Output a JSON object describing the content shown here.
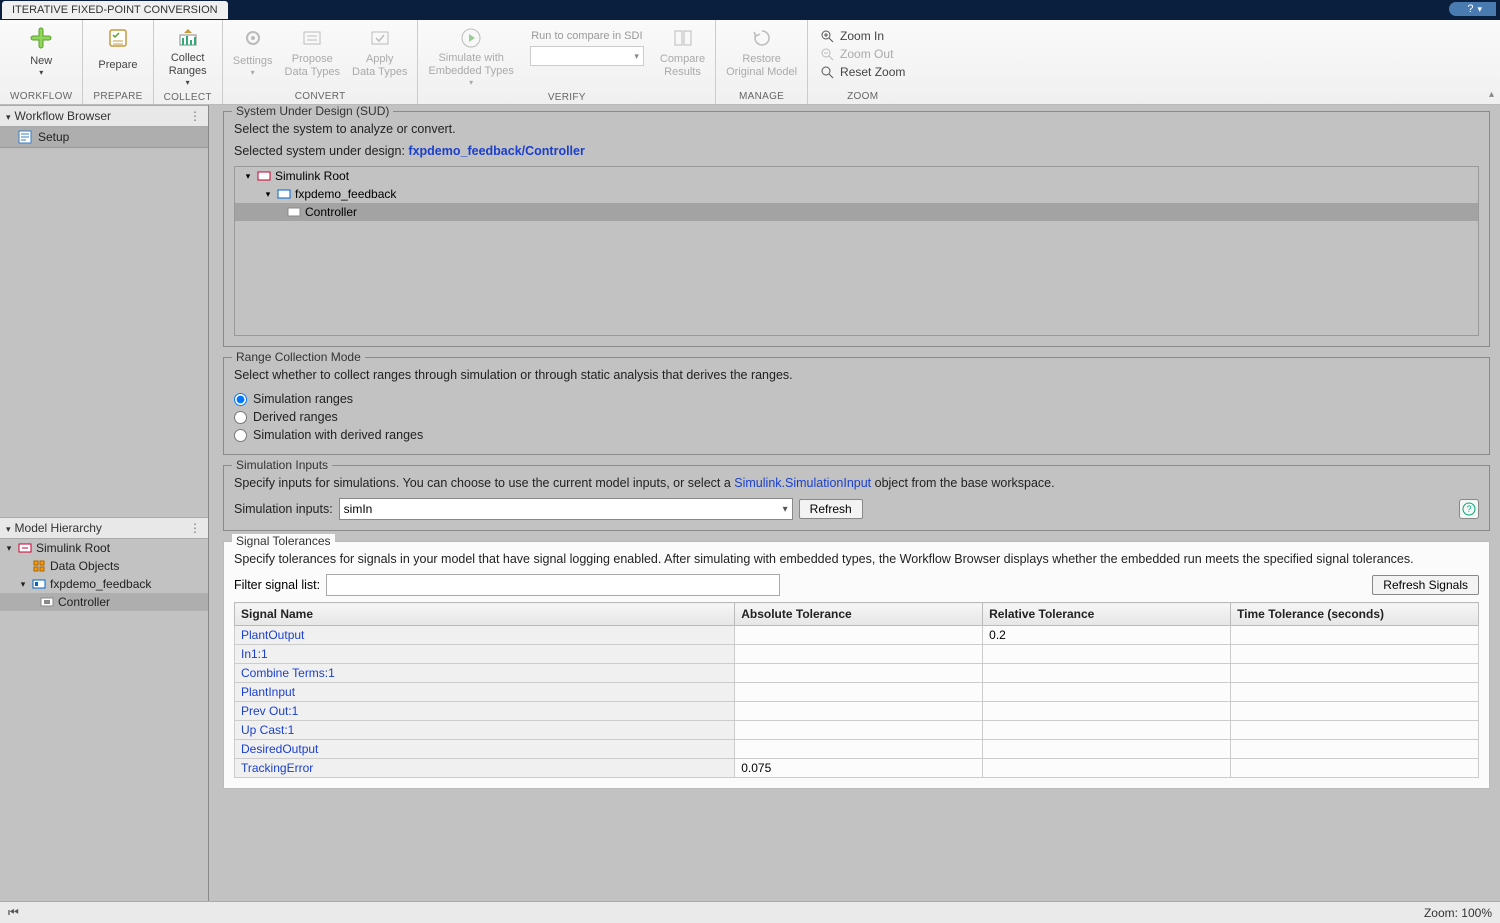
{
  "title_tab": "ITERATIVE FIXED-POINT CONVERSION",
  "help_badge": "?",
  "ribbon": {
    "new": "New",
    "prepare": "Prepare",
    "collect": "Collect\nRanges",
    "settings": "Settings",
    "propose": "Propose\nData Types",
    "apply": "Apply\nData Types",
    "simulate": "Simulate with\nEmbedded Types",
    "sdi_label": "Run to compare in SDI",
    "compare": "Compare\nResults",
    "restore": "Restore\nOriginal Model",
    "zoom_in": "Zoom In",
    "zoom_out": "Zoom Out",
    "reset_zoom": "Reset Zoom",
    "groups": {
      "workflow": "WORKFLOW",
      "prepare": "PREPARE",
      "collect": "COLLECT",
      "convert": "CONVERT",
      "verify": "VERIFY",
      "manage": "MANAGE",
      "zoom": "ZOOM"
    }
  },
  "panels": {
    "workflow_browser": "Workflow Browser",
    "setup": "Setup",
    "model_hierarchy": "Model Hierarchy",
    "simulink_root": "Simulink Root",
    "data_objects": "Data Objects",
    "fxpdemo_feedback": "fxpdemo_feedback",
    "controller": "Controller"
  },
  "sud": {
    "legend": "System Under Design (SUD)",
    "desc": "Select the system to analyze or convert.",
    "selected_label": "Selected system under design:",
    "selected_link": "fxpdemo_feedback/Controller",
    "tree": {
      "root": "Simulink Root",
      "model": "fxpdemo_feedback",
      "controller": "Controller"
    }
  },
  "range_mode": {
    "legend": "Range Collection Mode",
    "desc": "Select whether to collect ranges through simulation or through static analysis that derives the ranges.",
    "opt1": "Simulation ranges",
    "opt2": "Derived ranges",
    "opt3": "Simulation with derived ranges"
  },
  "sim_inputs": {
    "legend": "Simulation Inputs",
    "desc_pre": "Specify inputs for simulations. You can choose to use the current model inputs, or select a ",
    "desc_link": "Simulink.SimulationInput",
    "desc_post": " object from the base workspace.",
    "label": "Simulation inputs:",
    "value": "simIn",
    "refresh": "Refresh"
  },
  "tolerances": {
    "legend": "Signal Tolerances",
    "desc": "Specify tolerances for signals in your model that have signal logging enabled. After simulating with embedded types, the Workflow Browser displays whether the embedded run meets the specified signal tolerances.",
    "filter_label": "Filter signal list:",
    "refresh_btn": "Refresh Signals",
    "columns": [
      "Signal Name",
      "Absolute Tolerance",
      "Relative Tolerance",
      "Time Tolerance (seconds)"
    ],
    "col_widths": [
      "456px",
      "226px",
      "226px",
      "226px"
    ],
    "rows": [
      {
        "name": "PlantOutput",
        "abs": "",
        "rel": "0.2",
        "time": ""
      },
      {
        "name": "In1:1",
        "abs": "",
        "rel": "",
        "time": ""
      },
      {
        "name": "Combine Terms:1",
        "abs": "",
        "rel": "",
        "time": ""
      },
      {
        "name": "PlantInput",
        "abs": "",
        "rel": "",
        "time": ""
      },
      {
        "name": "Prev Out:1",
        "abs": "",
        "rel": "",
        "time": ""
      },
      {
        "name": "Up Cast:1",
        "abs": "",
        "rel": "",
        "time": ""
      },
      {
        "name": "DesiredOutput",
        "abs": "",
        "rel": "",
        "time": ""
      },
      {
        "name": "TrackingError",
        "abs": "0.075",
        "rel": "",
        "time": ""
      }
    ]
  },
  "statusbar": {
    "zoom": "Zoom: 100%"
  },
  "colors": {
    "link": "#1a3fcc",
    "bg_dim": "#c2c2c2",
    "bg_light": "#fbfbfb"
  }
}
